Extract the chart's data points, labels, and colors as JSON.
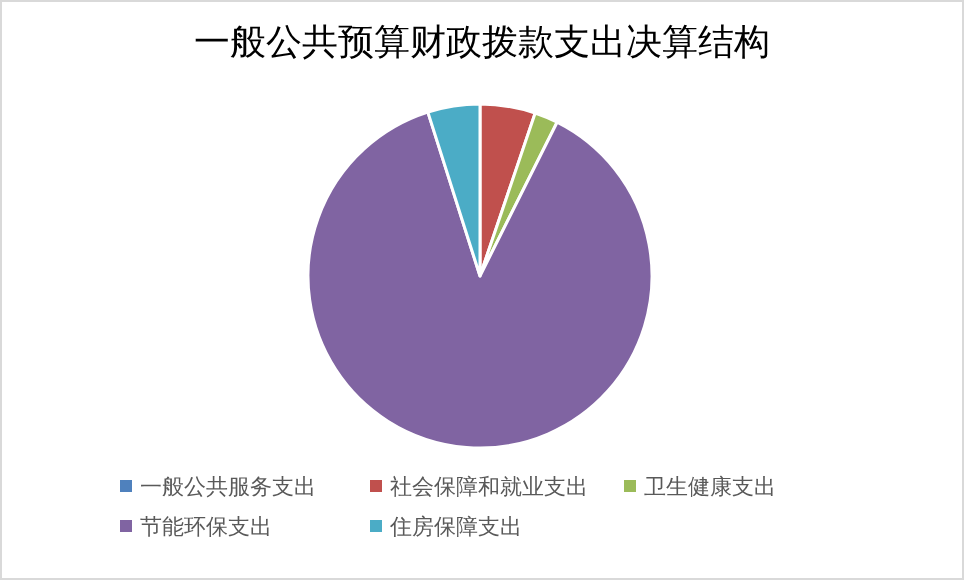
{
  "chart_data": {
    "type": "pie",
    "title": "一般公共预算财政拨款支出决算结构",
    "categories": [
      "一般公共服务支出",
      "社会保障和就业支出",
      "卫生健康支出",
      "节能环保支出",
      "住房保障支出"
    ],
    "values": [
      0,
      5.2,
      2.2,
      87.7,
      4.9
    ],
    "colors": [
      "#4f81bd",
      "#c0504d",
      "#9bbb59",
      "#8064a2",
      "#4bacc6"
    ],
    "legend": "bottom"
  }
}
